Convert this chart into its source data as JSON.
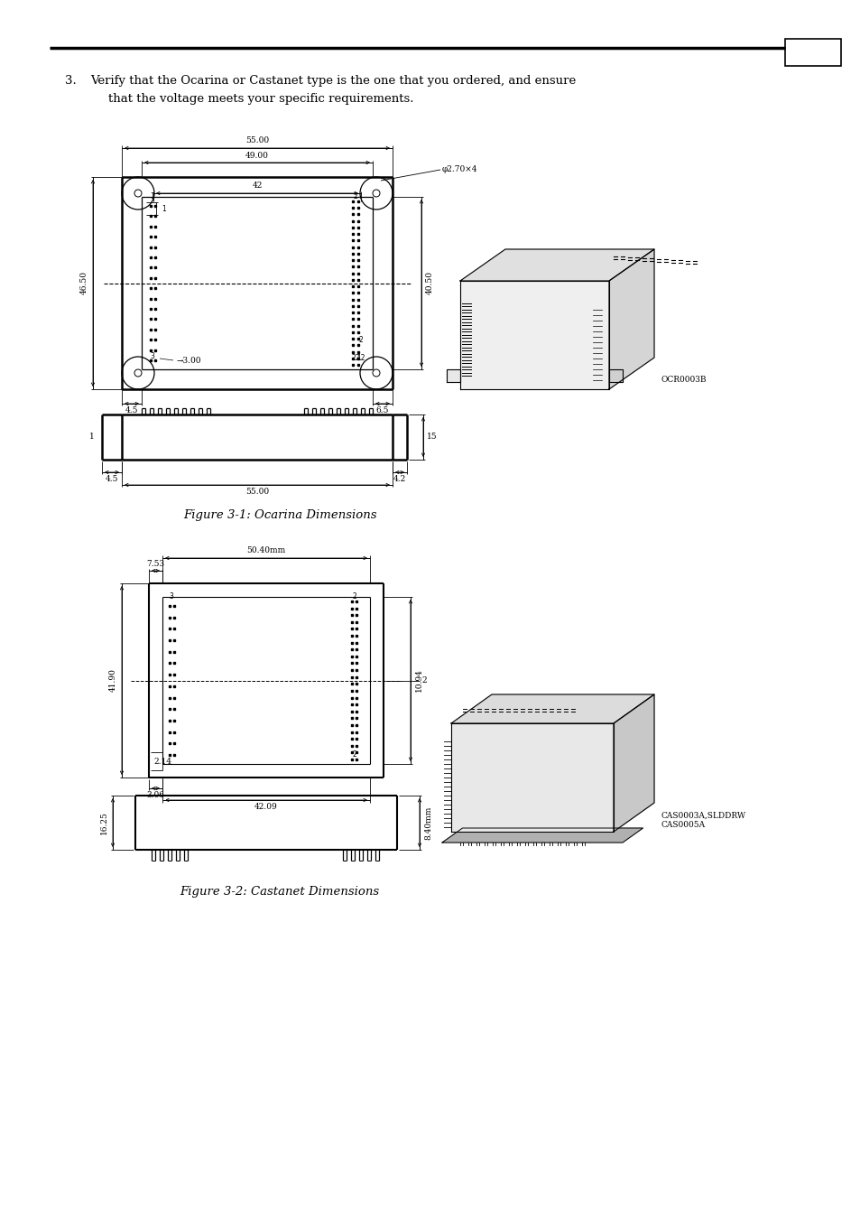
{
  "bg_color": "#ffffff",
  "text_color": "#000000",
  "line_color": "#000000",
  "fig1_caption": "Figure 3-1: Ocarina Dimensions",
  "fig2_caption": "Figure 3-2: Castanet Dimensions",
  "fig1_label": "OCR0003B",
  "fig2_label": "CAS0003A,SLDDRW\nCAS0005A",
  "font_size_body": 9.5,
  "font_size_caption": 9.5,
  "font_size_dim": 6.5
}
